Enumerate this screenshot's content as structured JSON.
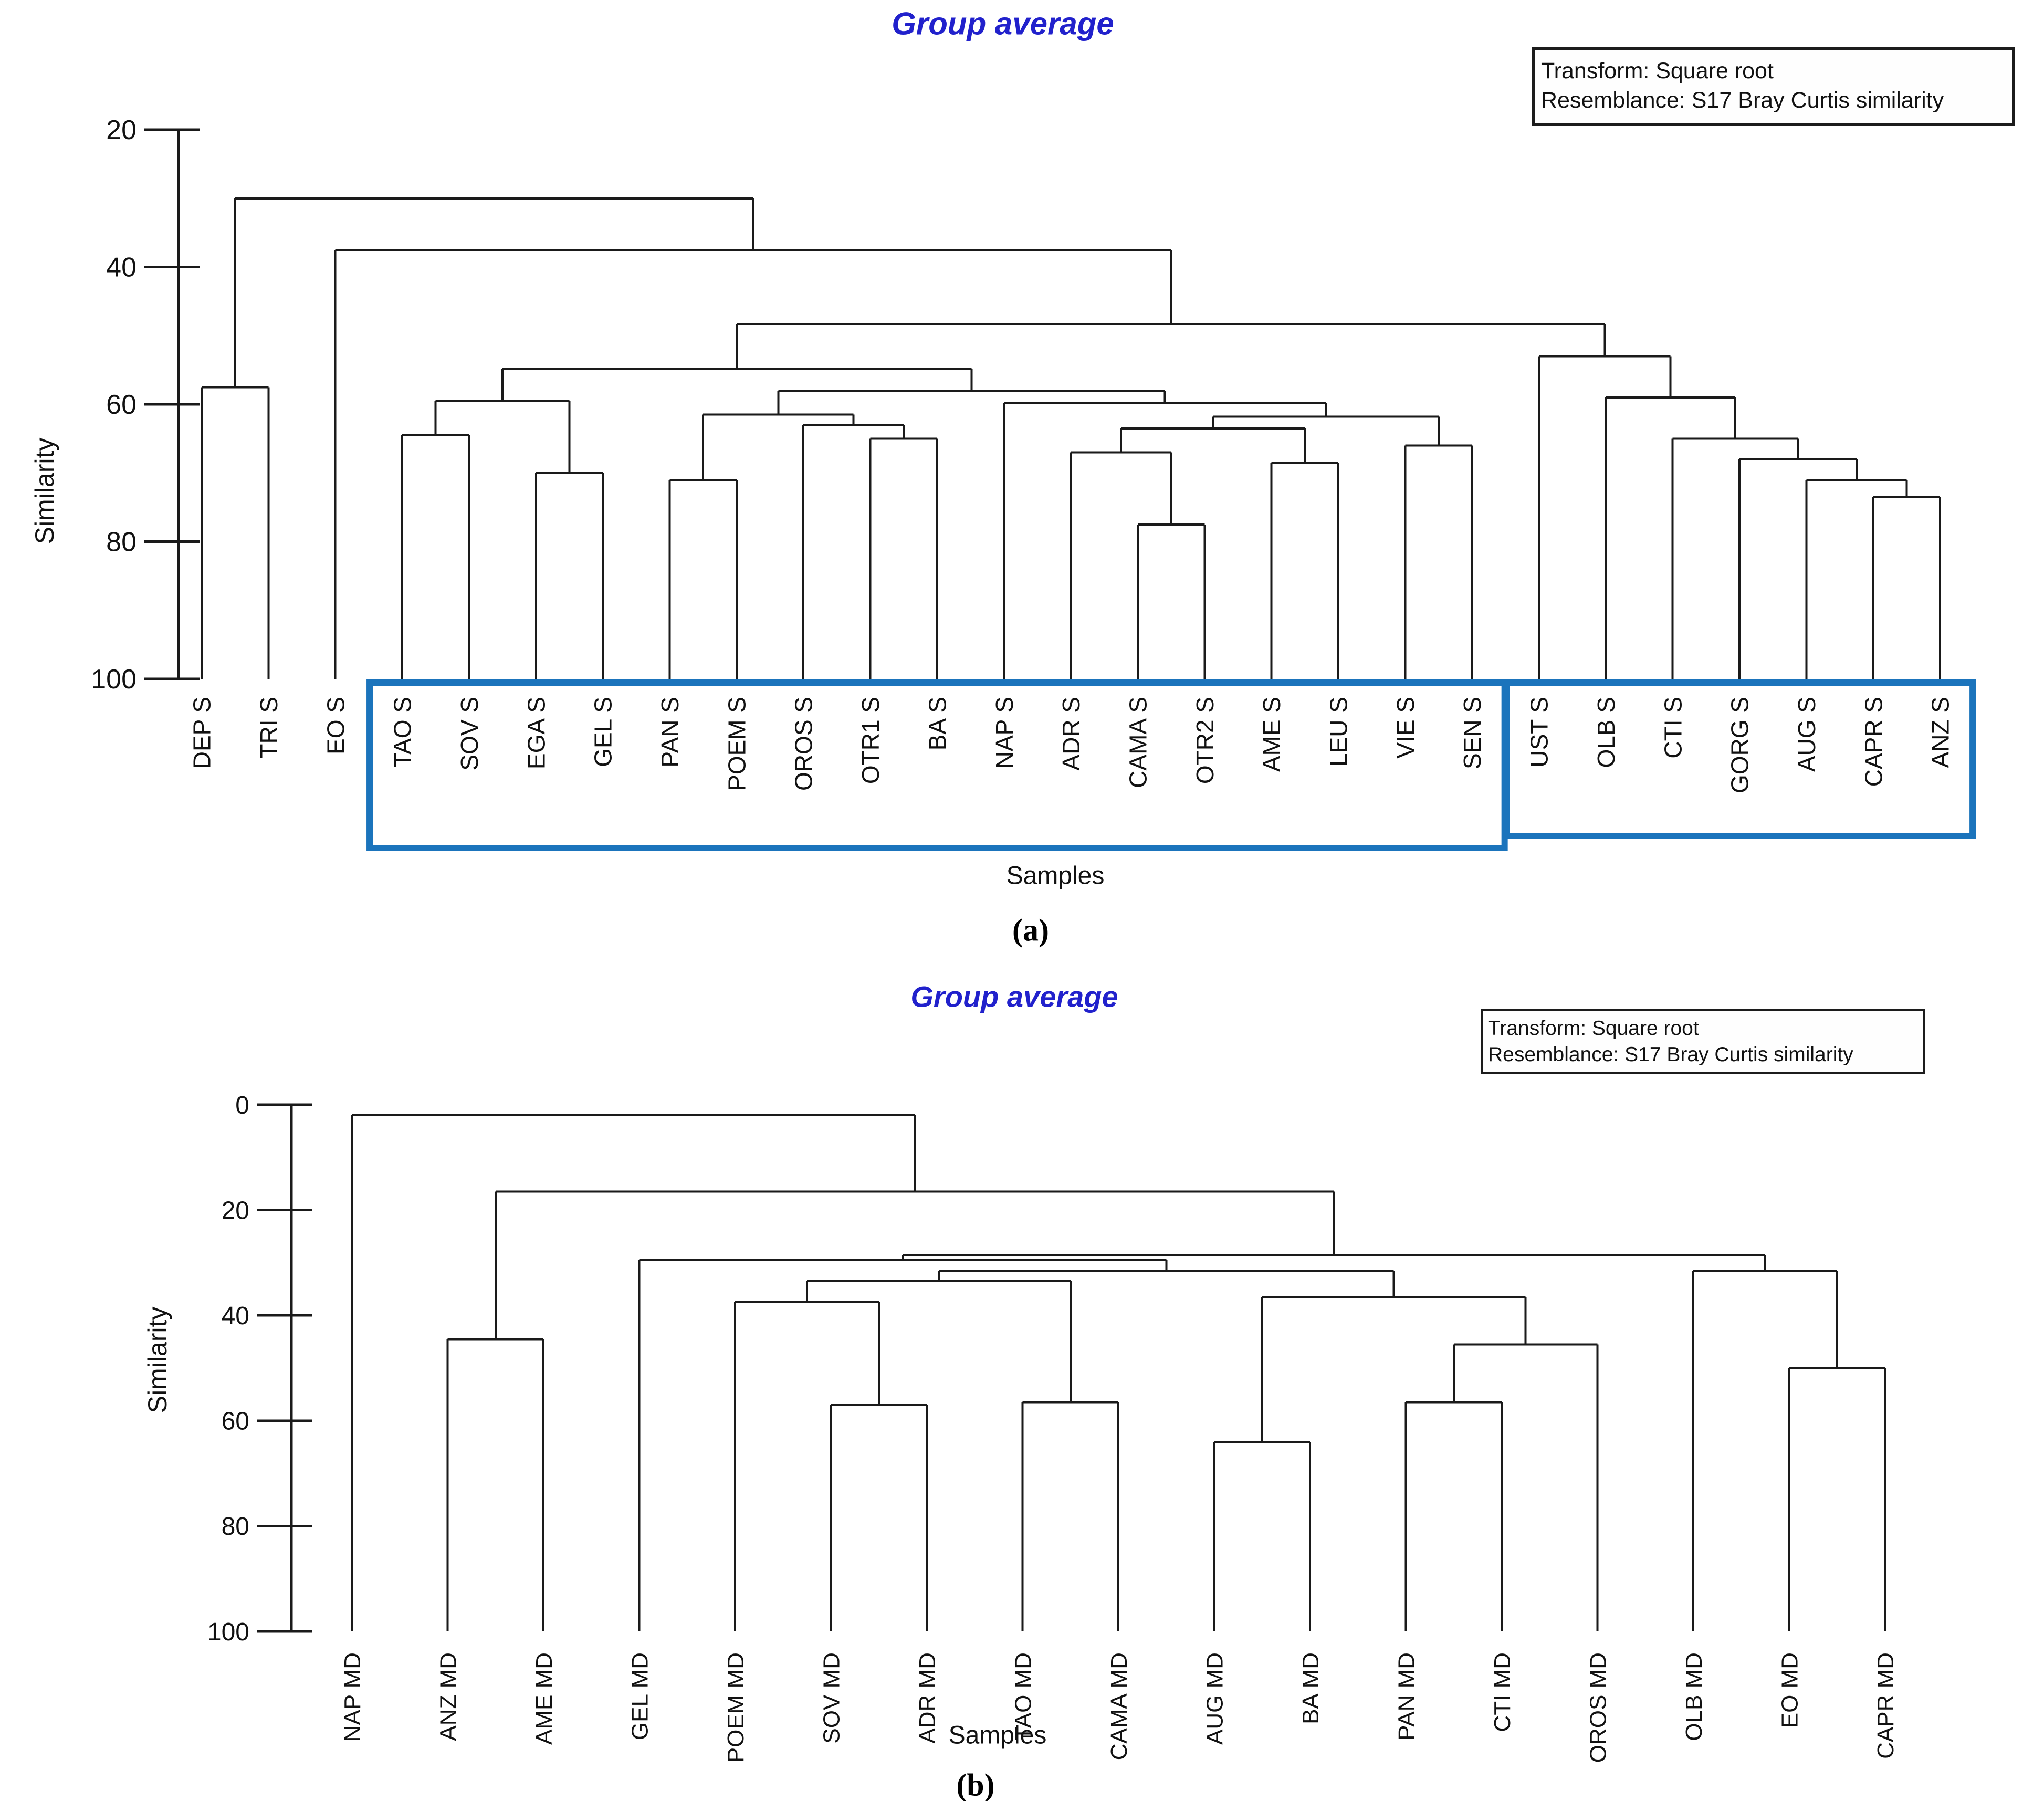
{
  "page": {
    "background": "#ffffff"
  },
  "chart_data": [
    {
      "type": "dendrogram",
      "id": "a",
      "title": "Group average",
      "title_color": "#2121cc",
      "annotation": {
        "line1": "Transform: Square root",
        "line2": "Resemblance: S17 Bray Curtis similarity"
      },
      "ylabel": "Similarity",
      "xlabel": "Samples",
      "caption": "(a)",
      "axis": {
        "label": "Similarity",
        "ticks": [
          20,
          40,
          60,
          80,
          100
        ],
        "orientation": "similarity-increases-downward"
      },
      "leaves": [
        "DEP S",
        "TRI S",
        "EO S",
        "TAO S",
        "SOV S",
        "EGA S",
        "GEL S",
        "PAN S",
        "POEM S",
        "OROS S",
        "OTR1 S",
        "BA S",
        "NAP S",
        "ADR S",
        "CAMA S",
        "OTR2 S",
        "AME S",
        "LEU S",
        "VIE S",
        "SEN S",
        "UST S",
        "OLB S",
        "CTI S",
        "GORG S",
        "AUG S",
        "CAPR S",
        "ANZ S"
      ],
      "highlight_boxes": [
        {
          "from": "TAO S",
          "to": "SEN S",
          "color": "#1b74bc"
        },
        {
          "from": "UST S",
          "to": "ANZ S",
          "color": "#1b74bc"
        }
      ],
      "tree": {
        "h": 30,
        "children": [
          {
            "h": 57.5,
            "children": [
              {
                "leaf": "DEP S"
              },
              {
                "leaf": "TRI S"
              }
            ]
          },
          {
            "h": 37.5,
            "children": [
              {
                "leaf": "EO S"
              },
              {
                "h": 48.3,
                "children": [
                  {
                    "h": 54.8,
                    "children": [
                      {
                        "h": 59.5,
                        "children": [
                          {
                            "h": 64.5,
                            "children": [
                              {
                                "leaf": "TAO S"
                              },
                              {
                                "leaf": "SOV S"
                              }
                            ]
                          },
                          {
                            "h": 70,
                            "children": [
                              {
                                "leaf": "EGA S"
                              },
                              {
                                "leaf": "GEL S"
                              }
                            ]
                          }
                        ]
                      },
                      {
                        "h": 58,
                        "children": [
                          {
                            "h": 61.5,
                            "children": [
                              {
                                "h": 71,
                                "children": [
                                  {
                                    "leaf": "PAN S"
                                  },
                                  {
                                    "leaf": "POEM S"
                                  }
                                ]
                              },
                              {
                                "h": 63,
                                "children": [
                                  {
                                    "leaf": "OROS S"
                                  },
                                  {
                                    "h": 65,
                                    "children": [
                                      {
                                        "leaf": "OTR1 S"
                                      },
                                      {
                                        "leaf": "BA S"
                                      }
                                    ]
                                  }
                                ]
                              }
                            ]
                          },
                          {
                            "h": 59.8,
                            "children": [
                              {
                                "leaf": "NAP S"
                              },
                              {
                                "h": 61.8,
                                "children": [
                                  {
                                    "h": 63.5,
                                    "children": [
                                      {
                                        "h": 67,
                                        "children": [
                                          {
                                            "leaf": "ADR S"
                                          },
                                          {
                                            "h": 77.5,
                                            "children": [
                                              {
                                                "leaf": "CAMA S"
                                              },
                                              {
                                                "leaf": "OTR2 S"
                                              }
                                            ]
                                          }
                                        ]
                                      },
                                      {
                                        "h": 68.5,
                                        "children": [
                                          {
                                            "leaf": "AME S"
                                          },
                                          {
                                            "leaf": "LEU S"
                                          }
                                        ]
                                      }
                                    ]
                                  },
                                  {
                                    "h": 66,
                                    "children": [
                                      {
                                        "leaf": "VIE S"
                                      },
                                      {
                                        "leaf": "SEN S"
                                      }
                                    ]
                                  }
                                ]
                              }
                            ]
                          }
                        ]
                      }
                    ]
                  },
                  {
                    "h": 53,
                    "children": [
                      {
                        "leaf": "UST S"
                      },
                      {
                        "h": 59,
                        "children": [
                          {
                            "leaf": "OLB S"
                          },
                          {
                            "h": 65,
                            "children": [
                              {
                                "leaf": "CTI S"
                              },
                              {
                                "h": 68,
                                "children": [
                                  {
                                    "leaf": "GORG S"
                                  },
                                  {
                                    "h": 71,
                                    "children": [
                                      {
                                        "leaf": "AUG S"
                                      },
                                      {
                                        "h": 73.5,
                                        "children": [
                                          {
                                            "leaf": "CAPR S"
                                          },
                                          {
                                            "leaf": "ANZ S"
                                          }
                                        ]
                                      }
                                    ]
                                  }
                                ]
                              }
                            ]
                          }
                        ]
                      }
                    ]
                  }
                ]
              }
            ]
          }
        ]
      }
    },
    {
      "type": "dendrogram",
      "id": "b",
      "title": "Group average",
      "title_color": "#2121cc",
      "annotation": {
        "line1": "Transform: Square root",
        "line2": "Resemblance: S17 Bray Curtis similarity"
      },
      "ylabel": "Similarity",
      "xlabel": "Samples",
      "caption": "(b)",
      "axis": {
        "label": "Similarity",
        "ticks": [
          0,
          20,
          40,
          60,
          80,
          100
        ],
        "orientation": "similarity-increases-downward"
      },
      "leaves": [
        "NAP MD",
        "ANZ MD",
        "AME MD",
        "GEL MD",
        "POEM MD",
        "SOV MD",
        "ADR MD",
        "TAO MD",
        "CAMA MD",
        "AUG MD",
        "BA MD",
        "PAN MD",
        "CTI MD",
        "OROS MD",
        "OLB MD",
        "EO MD",
        "CAPR MD"
      ],
      "highlight_boxes": [],
      "tree": {
        "h": 2,
        "children": [
          {
            "leaf": "NAP MD"
          },
          {
            "h": 16.5,
            "children": [
              {
                "h": 44.5,
                "children": [
                  {
                    "leaf": "ANZ MD"
                  },
                  {
                    "leaf": "AME MD"
                  }
                ]
              },
              {
                "h": 28.5,
                "children": [
                  {
                    "h": 29.5,
                    "children": [
                      {
                        "leaf": "GEL MD"
                      },
                      {
                        "h": 31.5,
                        "children": [
                          {
                            "h": 33.5,
                            "children": [
                              {
                                "h": 37.5,
                                "children": [
                                  {
                                    "leaf": "POEM MD"
                                  },
                                  {
                                    "h": 57,
                                    "children": [
                                      {
                                        "leaf": "SOV MD"
                                      },
                                      {
                                        "leaf": "ADR MD"
                                      }
                                    ]
                                  }
                                ]
                              },
                              {
                                "h": 56.5,
                                "children": [
                                  {
                                    "leaf": "TAO MD"
                                  },
                                  {
                                    "leaf": "CAMA MD"
                                  }
                                ]
                              }
                            ]
                          },
                          {
                            "h": 36.5,
                            "children": [
                              {
                                "h": 64,
                                "children": [
                                  {
                                    "leaf": "AUG MD"
                                  },
                                  {
                                    "leaf": "BA MD"
                                  }
                                ]
                              },
                              {
                                "h": 45.5,
                                "children": [
                                  {
                                    "h": 56.5,
                                    "children": [
                                      {
                                        "leaf": "PAN MD"
                                      },
                                      {
                                        "leaf": "CTI MD"
                                      }
                                    ]
                                  },
                                  {
                                    "leaf": "OROS MD"
                                  }
                                ]
                              }
                            ]
                          }
                        ]
                      }
                    ]
                  },
                  {
                    "h": 31.5,
                    "children": [
                      {
                        "leaf": "OLB MD"
                      },
                      {
                        "h": 50,
                        "children": [
                          {
                            "leaf": "EO MD"
                          },
                          {
                            "leaf": "CAPR MD"
                          }
                        ]
                      }
                    ]
                  }
                ]
              }
            ]
          }
        ]
      }
    }
  ]
}
